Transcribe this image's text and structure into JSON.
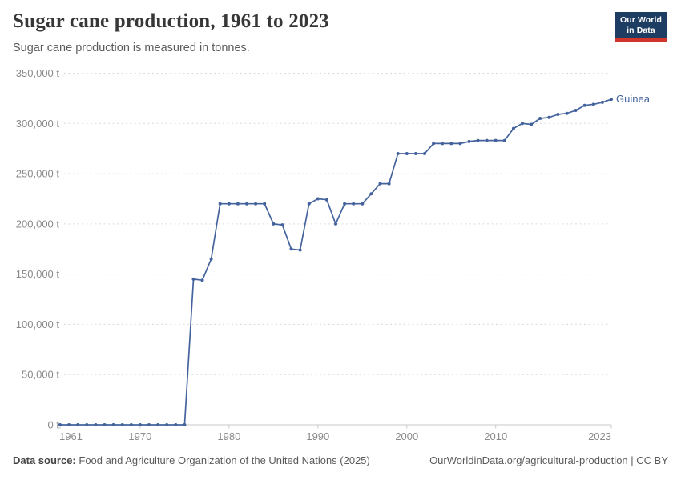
{
  "header": {
    "title": "Sugar cane production, 1961 to 2023",
    "subtitle": "Sugar cane production is measured in tonnes."
  },
  "logo": {
    "line1": "Our World",
    "line2": "in Data",
    "bg_color": "#1d3d63",
    "bar_color": "#d0342a"
  },
  "chart_data": {
    "type": "line",
    "title": "Sugar cane production, 1961 to 2023",
    "unit": "tonnes",
    "grid": "horizontal-dashed",
    "legend_position": "end-of-line",
    "xlabel": "",
    "ylabel": "",
    "xlim": [
      1961,
      2023
    ],
    "ylim": [
      0,
      350000
    ],
    "x_ticks": [
      {
        "value": 1961,
        "label": "1961"
      },
      {
        "value": 1970,
        "label": "1970"
      },
      {
        "value": 1980,
        "label": "1980"
      },
      {
        "value": 1990,
        "label": "1990"
      },
      {
        "value": 2000,
        "label": "2000"
      },
      {
        "value": 2010,
        "label": "2010"
      },
      {
        "value": 2023,
        "label": "2023"
      }
    ],
    "y_ticks": [
      {
        "value": 0,
        "label": "0 t"
      },
      {
        "value": 50000,
        "label": "50,000 t"
      },
      {
        "value": 100000,
        "label": "100,000 t"
      },
      {
        "value": 150000,
        "label": "150,000 t"
      },
      {
        "value": 200000,
        "label": "200,000 t"
      },
      {
        "value": 250000,
        "label": "250,000 t"
      },
      {
        "value": 300000,
        "label": "300,000 t"
      },
      {
        "value": 350000,
        "label": "350,000 t"
      }
    ],
    "x": [
      1961,
      1962,
      1963,
      1964,
      1965,
      1966,
      1967,
      1968,
      1969,
      1970,
      1971,
      1972,
      1973,
      1974,
      1975,
      1976,
      1977,
      1978,
      1979,
      1980,
      1981,
      1982,
      1983,
      1984,
      1985,
      1986,
      1987,
      1988,
      1989,
      1990,
      1991,
      1992,
      1993,
      1994,
      1995,
      1996,
      1997,
      1998,
      1999,
      2000,
      2001,
      2002,
      2003,
      2004,
      2005,
      2006,
      2007,
      2008,
      2009,
      2010,
      2011,
      2012,
      2013,
      2014,
      2015,
      2016,
      2017,
      2018,
      2019,
      2020,
      2021,
      2022,
      2023
    ],
    "series": [
      {
        "name": "Guinea",
        "color": "#44639d",
        "values": [
          0,
          0,
          0,
          0,
          0,
          0,
          0,
          0,
          0,
          0,
          0,
          0,
          0,
          0,
          0,
          145000,
          144000,
          165000,
          220000,
          220000,
          220000,
          220000,
          220000,
          220000,
          200000,
          199000,
          175000,
          174000,
          220000,
          225000,
          224000,
          200000,
          220000,
          220000,
          220000,
          230000,
          240000,
          240000,
          270000,
          270000,
          270000,
          270000,
          280000,
          280000,
          280000,
          280000,
          282000,
          283000,
          283000,
          283000,
          283000,
          295000,
          300000,
          299000,
          305000,
          306000,
          309000,
          310000,
          313000,
          318000,
          319000,
          321000,
          324000
        ]
      }
    ]
  },
  "footer": {
    "source_label": "Data source:",
    "source_text": "Food and Agriculture Organization of the United Nations (2025)",
    "right_text": "OurWorldinData.org/agricultural-production | CC BY"
  },
  "colors": {
    "line": "#44639d",
    "grid": "#dadada",
    "axis": "#c8c8c8",
    "tick_text": "#8a8a8a",
    "title_text": "#373737",
    "subtitle_text": "#5b5b5b"
  }
}
